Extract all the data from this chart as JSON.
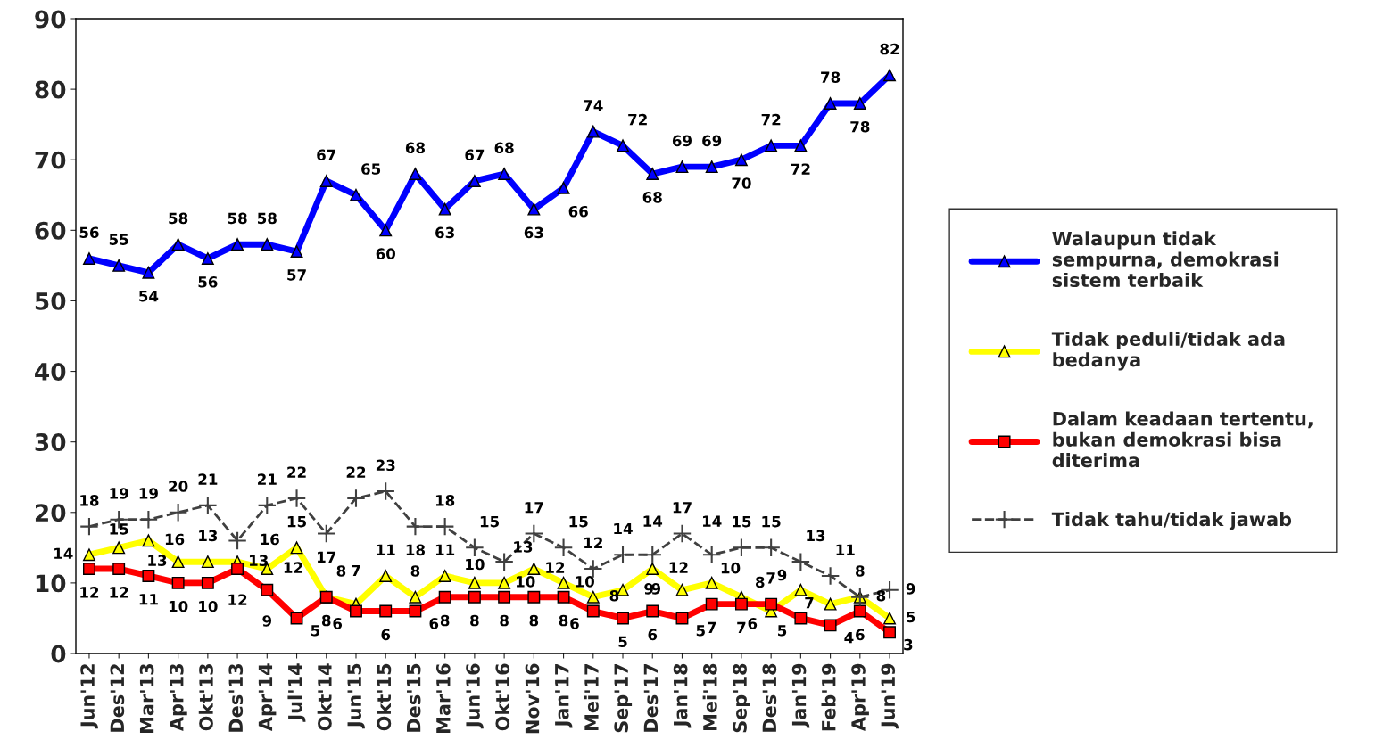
{
  "chart_data": {
    "type": "line",
    "categories": [
      "Jun'12",
      "Des'12",
      "Mar'13",
      "Apr'13",
      "Okt'13",
      "Des'13",
      "Apr'14",
      "Jul'14",
      "Okt'14",
      "Jun'15",
      "Okt'15",
      "Des'15",
      "Mar'16",
      "Jun'16",
      "Okt'16",
      "Nov'16",
      "Jan'17",
      "Mei'17",
      "Sep'17",
      "Des'17",
      "Jan'18",
      "Mei'18",
      "Sep'18",
      "Des'18",
      "Jan'19",
      "Feb'19",
      "Apr'19",
      "Jun'19"
    ],
    "series": [
      {
        "name": "Walaupun tidak\nsempurna, demokrasi\nsistem terbaik",
        "color": "#0000ff",
        "marker": "triangle",
        "line_style": "solid",
        "values": [
          56,
          55,
          54,
          58,
          56,
          58,
          58,
          57,
          67,
          65,
          60,
          68,
          63,
          67,
          68,
          63,
          66,
          74,
          72,
          68,
          69,
          69,
          70,
          72,
          72,
          78,
          78,
          82
        ]
      },
      {
        "name": "Tidak peduli/tidak ada\nbedanya",
        "color": "#ffff00",
        "marker": "triangle",
        "line_style": "solid",
        "values": [
          14,
          15,
          16,
          13,
          13,
          13,
          12,
          15,
          8,
          7,
          11,
          8,
          11,
          10,
          10,
          12,
          10,
          8,
          9,
          12,
          9,
          10,
          8,
          6,
          9,
          7,
          8,
          5
        ]
      },
      {
        "name": "Dalam keadaan tertentu,\nbukan demokrasi bisa\nditerima",
        "color": "#ff0000",
        "marker": "square",
        "line_style": "solid",
        "values": [
          12,
          12,
          11,
          10,
          10,
          12,
          9,
          5,
          8,
          6,
          6,
          6,
          8,
          8,
          8,
          8,
          8,
          6,
          5,
          6,
          5,
          7,
          7,
          7,
          5,
          4,
          6,
          3
        ]
      },
      {
        "name": "Tidak tahu/tidak jawab",
        "color": "#404040",
        "marker": "cross",
        "line_style": "dashed",
        "values": [
          18,
          19,
          19,
          20,
          21,
          16,
          21,
          22,
          17,
          22,
          23,
          18,
          18,
          15,
          13,
          17,
          15,
          12,
          14,
          14,
          17,
          14,
          15,
          15,
          13,
          11,
          8,
          9
        ]
      }
    ],
    "ylim": [
      0,
      90
    ],
    "yticks": [
      0,
      10,
      20,
      30,
      40,
      50,
      60,
      70,
      80,
      90
    ],
    "data_labels": true,
    "grid": false,
    "legend": "right"
  }
}
